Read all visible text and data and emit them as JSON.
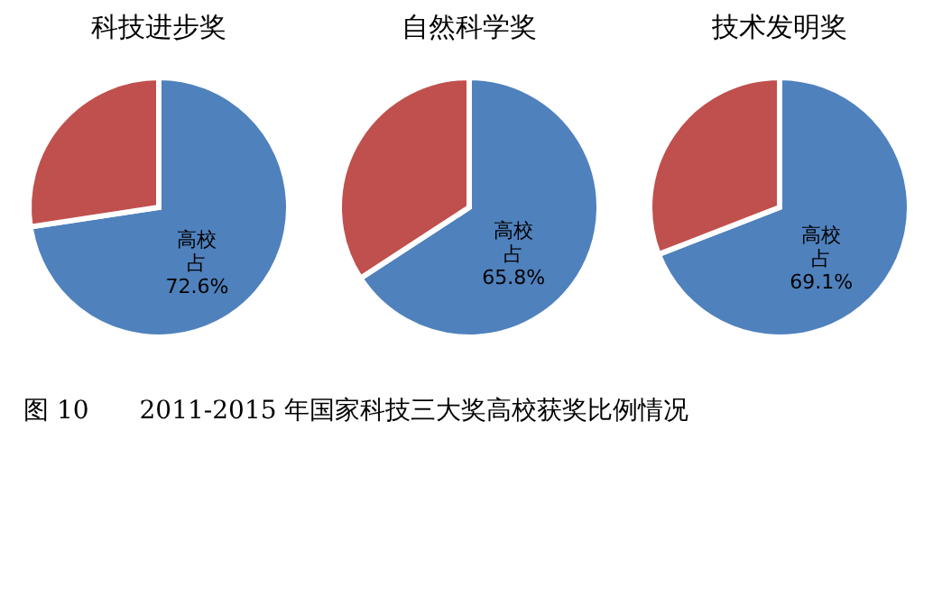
{
  "chart_data": [
    {
      "type": "pie",
      "title": "科技进步奖",
      "categories": [
        "高校占",
        null
      ],
      "values": [
        72.6,
        27.4
      ],
      "colors": [
        "#4f81bd",
        "#c0504d"
      ],
      "value_labels": [
        "72.6%",
        null
      ]
    },
    {
      "type": "pie",
      "title": "自然科学奖",
      "categories": [
        "高校占",
        null
      ],
      "values": [
        65.8,
        34.2
      ],
      "colors": [
        "#4f81bd",
        "#c0504d"
      ],
      "value_labels": [
        "65.8%",
        null
      ]
    },
    {
      "type": "pie",
      "title": "技术发明奖",
      "categories": [
        "高校占",
        null
      ],
      "values": [
        69.1,
        30.9
      ],
      "colors": [
        "#4f81bd",
        "#c0504d"
      ],
      "value_labels": [
        "69.1%",
        null
      ],
      "annotations": [
        "图 10　　2011-2015 年国家科技三大奖高校获奖比例情况"
      ]
    }
  ]
}
